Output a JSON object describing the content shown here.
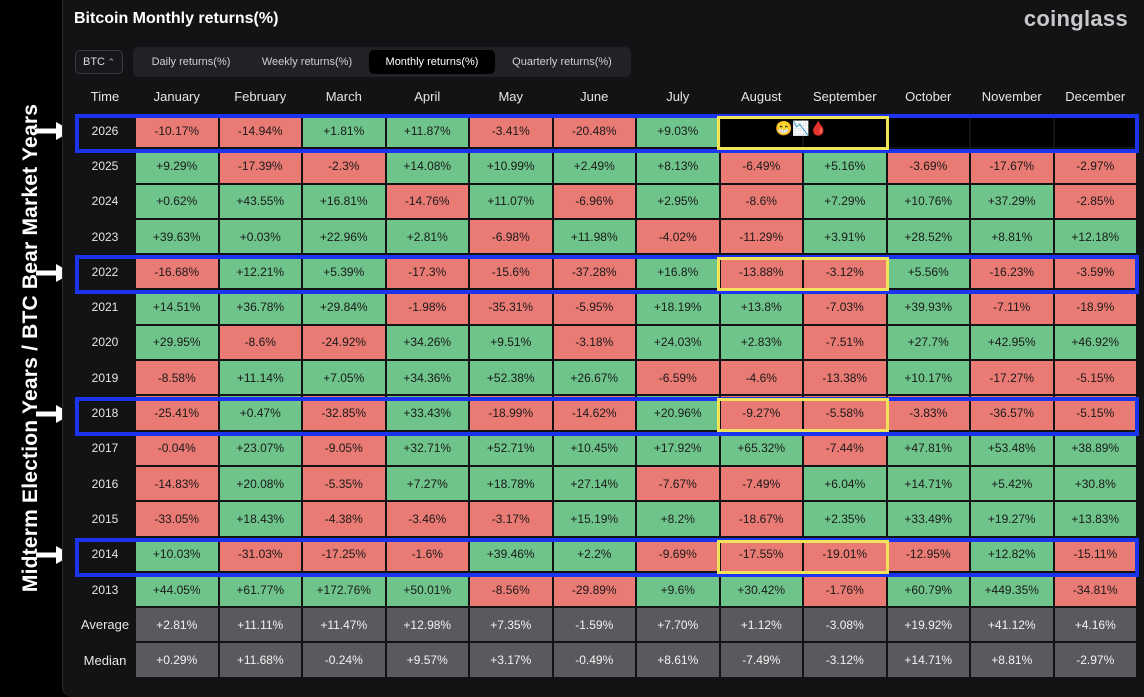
{
  "title": "Bitcoin Monthly returns(%)",
  "brand": "coinglass",
  "side_label": "Midterm Election Years / BTC Bear Market Years",
  "coin_select": "BTC",
  "tabs": [
    "Daily returns(%)",
    "Weekly returns(%)",
    "Monthly returns(%)",
    "Quarterly returns(%)"
  ],
  "active_tab": "Monthly returns(%)",
  "headers": [
    "Time",
    "January",
    "February",
    "March",
    "April",
    "May",
    "June",
    "July",
    "August",
    "September",
    "October",
    "November",
    "December"
  ],
  "rows": [
    {
      "year": "2026",
      "values": [
        "-10.17%",
        "-14.94%",
        "+1.81%",
        "+11.87%",
        "-3.41%",
        "-20.48%",
        "+9.03%",
        "",
        "",
        "",
        "",
        ""
      ]
    },
    {
      "year": "2025",
      "values": [
        "+9.29%",
        "-17.39%",
        "-2.3%",
        "+14.08%",
        "+10.99%",
        "+2.49%",
        "+8.13%",
        "-6.49%",
        "+5.16%",
        "-3.69%",
        "-17.67%",
        "-2.97%"
      ]
    },
    {
      "year": "2024",
      "values": [
        "+0.62%",
        "+43.55%",
        "+16.81%",
        "-14.76%",
        "+11.07%",
        "-6.96%",
        "+2.95%",
        "-8.6%",
        "+7.29%",
        "+10.76%",
        "+37.29%",
        "-2.85%"
      ]
    },
    {
      "year": "2023",
      "values": [
        "+39.63%",
        "+0.03%",
        "+22.96%",
        "+2.81%",
        "-6.98%",
        "+11.98%",
        "-4.02%",
        "-11.29%",
        "+3.91%",
        "+28.52%",
        "+8.81%",
        "+12.18%"
      ]
    },
    {
      "year": "2022",
      "values": [
        "-16.68%",
        "+12.21%",
        "+5.39%",
        "-17.3%",
        "-15.6%",
        "-37.28%",
        "+16.8%",
        "-13.88%",
        "-3.12%",
        "+5.56%",
        "-16.23%",
        "-3.59%"
      ]
    },
    {
      "year": "2021",
      "values": [
        "+14.51%",
        "+36.78%",
        "+29.84%",
        "-1.98%",
        "-35.31%",
        "-5.95%",
        "+18.19%",
        "+13.8%",
        "-7.03%",
        "+39.93%",
        "-7.11%",
        "-18.9%"
      ]
    },
    {
      "year": "2020",
      "values": [
        "+29.95%",
        "-8.6%",
        "-24.92%",
        "+34.26%",
        "+9.51%",
        "-3.18%",
        "+24.03%",
        "+2.83%",
        "-7.51%",
        "+27.7%",
        "+42.95%",
        "+46.92%"
      ]
    },
    {
      "year": "2019",
      "values": [
        "-8.58%",
        "+11.14%",
        "+7.05%",
        "+34.36%",
        "+52.38%",
        "+26.67%",
        "-6.59%",
        "-4.6%",
        "-13.38%",
        "+10.17%",
        "-17.27%",
        "-5.15%"
      ]
    },
    {
      "year": "2018",
      "values": [
        "-25.41%",
        "+0.47%",
        "-32.85%",
        "+33.43%",
        "-18.99%",
        "-14.62%",
        "+20.96%",
        "-9.27%",
        "-5.58%",
        "-3.83%",
        "-36.57%",
        "-5.15%"
      ]
    },
    {
      "year": "2017",
      "values": [
        "-0.04%",
        "+23.07%",
        "-9.05%",
        "+32.71%",
        "+52.71%",
        "+10.45%",
        "+17.92%",
        "+65.32%",
        "-7.44%",
        "+47.81%",
        "+53.48%",
        "+38.89%"
      ]
    },
    {
      "year": "2016",
      "values": [
        "-14.83%",
        "+20.08%",
        "-5.35%",
        "+7.27%",
        "+18.78%",
        "+27.14%",
        "-7.67%",
        "-7.49%",
        "+6.04%",
        "+14.71%",
        "+5.42%",
        "+30.8%"
      ]
    },
    {
      "year": "2015",
      "values": [
        "-33.05%",
        "+18.43%",
        "-4.38%",
        "-3.46%",
        "-3.17%",
        "+15.19%",
        "+8.2%",
        "-18.67%",
        "+2.35%",
        "+33.49%",
        "+19.27%",
        "+13.83%"
      ]
    },
    {
      "year": "2014",
      "values": [
        "+10.03%",
        "-31.03%",
        "-17.25%",
        "-1.6%",
        "+39.46%",
        "+2.2%",
        "-9.69%",
        "-17.55%",
        "-19.01%",
        "-12.95%",
        "+12.82%",
        "-15.11%"
      ]
    },
    {
      "year": "2013",
      "values": [
        "+44.05%",
        "+61.77%",
        "+172.76%",
        "+50.01%",
        "-8.56%",
        "-29.89%",
        "+9.6%",
        "+30.42%",
        "-1.76%",
        "+60.79%",
        "+449.35%",
        "-34.81%"
      ]
    }
  ],
  "stats": [
    {
      "label": "Average",
      "values": [
        "+2.81%",
        "+11.11%",
        "+11.47%",
        "+12.98%",
        "+7.35%",
        "-1.59%",
        "+7.70%",
        "+1.12%",
        "-3.08%",
        "+19.92%",
        "+41.12%",
        "+4.16%"
      ]
    },
    {
      "label": "Median",
      "values": [
        "+0.29%",
        "+11.68%",
        "-0.24%",
        "+9.57%",
        "+3.17%",
        "-0.49%",
        "+8.61%",
        "-7.49%",
        "-3.12%",
        "+14.71%",
        "+8.81%",
        "-2.97%"
      ]
    }
  ],
  "annotation_emojis": "😁📉🩸",
  "colors": {
    "positive": "#6ec48a",
    "negative": "#ea7a74",
    "stat": "#5a5a5e",
    "highlight_blue": "#1d34ee",
    "highlight_yellow": "#f0e35a"
  }
}
